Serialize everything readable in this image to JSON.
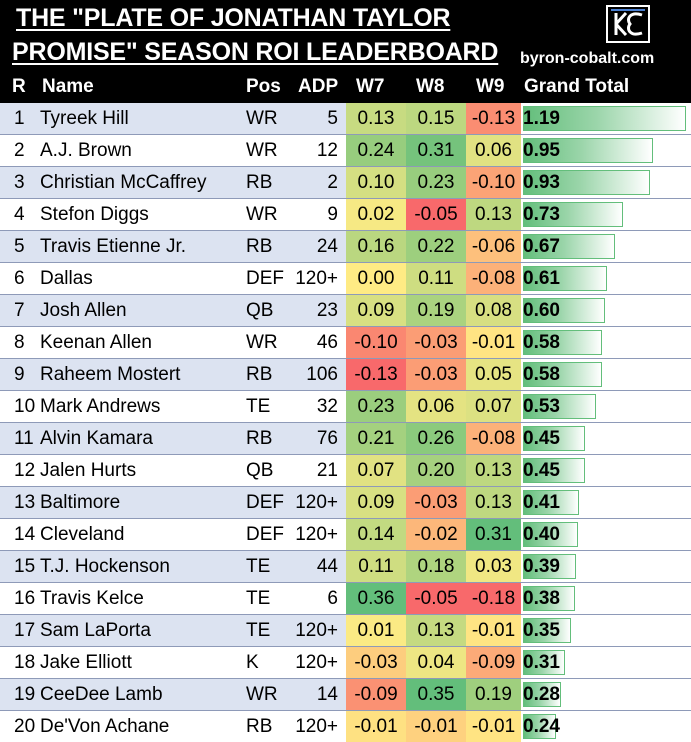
{
  "header": {
    "title_line1": "THE \"PLATE OF JONATHAN TAYLOR",
    "title_line2": "PROMISE\" SEASON ROI LEADERBOARD",
    "site": "byron-cobalt.com",
    "logo_icon": "byron-cobalt-logo-icon"
  },
  "columns": {
    "rank": "R",
    "name": "Name",
    "pos": "Pos",
    "adp": "ADP",
    "w7": "W7",
    "w8": "W8",
    "w9": "W9",
    "total": "Grand Total"
  },
  "colors": {
    "scale_low": "#f8696b",
    "scale_mid": "#ffeb84",
    "scale_high": "#63be7b",
    "bar": "#63be7b",
    "stripe": "#dce3f1"
  },
  "rows": [
    {
      "r": "1",
      "name": "Tyreek Hill",
      "pos": "WR",
      "adp": "5",
      "w7": "0.13",
      "w8": "0.15",
      "w9": "-0.13",
      "total": "1.19"
    },
    {
      "r": "2",
      "name": "A.J. Brown",
      "pos": "WR",
      "adp": "12",
      "w7": "0.24",
      "w8": "0.31",
      "w9": "0.06",
      "total": "0.95"
    },
    {
      "r": "3",
      "name": "Christian McCaffrey",
      "pos": "RB",
      "adp": "2",
      "w7": "0.10",
      "w8": "0.23",
      "w9": "-0.10",
      "total": "0.93"
    },
    {
      "r": "4",
      "name": "Stefon Diggs",
      "pos": "WR",
      "adp": "9",
      "w7": "0.02",
      "w8": "-0.05",
      "w9": "0.13",
      "total": "0.73"
    },
    {
      "r": "5",
      "name": "Travis Etienne Jr.",
      "pos": "RB",
      "adp": "24",
      "w7": "0.16",
      "w8": "0.22",
      "w9": "-0.06",
      "total": "0.67"
    },
    {
      "r": "6",
      "name": "Dallas",
      "pos": "DEF",
      "adp": "120+",
      "w7": "0.00",
      "w8": "0.11",
      "w9": "-0.08",
      "total": "0.61"
    },
    {
      "r": "7",
      "name": "Josh Allen",
      "pos": "QB",
      "adp": "23",
      "w7": "0.09",
      "w8": "0.19",
      "w9": "0.08",
      "total": "0.60"
    },
    {
      "r": "8",
      "name": "Keenan Allen",
      "pos": "WR",
      "adp": "46",
      "w7": "-0.10",
      "w8": "-0.03",
      "w9": "-0.01",
      "total": "0.58"
    },
    {
      "r": "9",
      "name": "Raheem Mostert",
      "pos": "RB",
      "adp": "106",
      "w7": "-0.13",
      "w8": "-0.03",
      "w9": "0.05",
      "total": "0.58"
    },
    {
      "r": "10",
      "name": "Mark Andrews",
      "pos": "TE",
      "adp": "32",
      "w7": "0.23",
      "w8": "0.06",
      "w9": "0.07",
      "total": "0.53"
    },
    {
      "r": "11",
      "name": "Alvin Kamara",
      "pos": "RB",
      "adp": "76",
      "w7": "0.21",
      "w8": "0.26",
      "w9": "-0.08",
      "total": "0.45"
    },
    {
      "r": "12",
      "name": "Jalen Hurts",
      "pos": "QB",
      "adp": "21",
      "w7": "0.07",
      "w8": "0.20",
      "w9": "0.13",
      "total": "0.45"
    },
    {
      "r": "13",
      "name": "Baltimore",
      "pos": "DEF",
      "adp": "120+",
      "w7": "0.09",
      "w8": "-0.03",
      "w9": "0.13",
      "total": "0.41"
    },
    {
      "r": "14",
      "name": "Cleveland",
      "pos": "DEF",
      "adp": "120+",
      "w7": "0.14",
      "w8": "-0.02",
      "w9": "0.31",
      "total": "0.40"
    },
    {
      "r": "15",
      "name": "T.J. Hockenson",
      "pos": "TE",
      "adp": "44",
      "w7": "0.11",
      "w8": "0.18",
      "w9": "0.03",
      "total": "0.39"
    },
    {
      "r": "16",
      "name": "Travis Kelce",
      "pos": "TE",
      "adp": "6",
      "w7": "0.36",
      "w8": "-0.05",
      "w9": "-0.18",
      "total": "0.38"
    },
    {
      "r": "17",
      "name": "Sam LaPorta",
      "pos": "TE",
      "adp": "120+",
      "w7": "0.01",
      "w8": "0.13",
      "w9": "-0.01",
      "total": "0.35"
    },
    {
      "r": "18",
      "name": "Jake Elliott",
      "pos": "K",
      "adp": "120+",
      "w7": "-0.03",
      "w8": "0.04",
      "w9": "-0.09",
      "total": "0.31"
    },
    {
      "r": "19",
      "name": "CeeDee Lamb",
      "pos": "WR",
      "adp": "14",
      "w7": "-0.09",
      "w8": "0.35",
      "w9": "0.19",
      "total": "0.28"
    },
    {
      "r": "20",
      "name": "De'Von Achane",
      "pos": "RB",
      "adp": "120+",
      "w7": "-0.01",
      "w8": "-0.01",
      "w9": "-0.01",
      "total": "0.24"
    }
  ]
}
